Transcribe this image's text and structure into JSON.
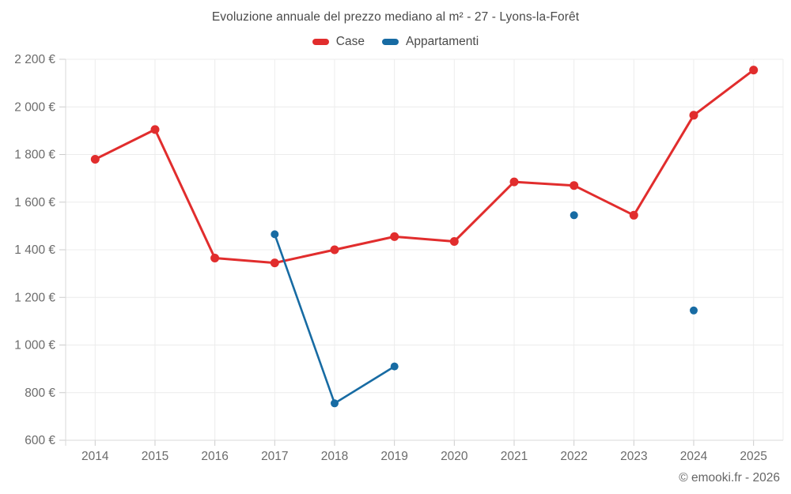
{
  "title": "Evoluzione annuale del prezzo mediano al m² - 27 - Lyons-la-Forêt",
  "legend": {
    "items": [
      {
        "label": "Case",
        "color": "#e12d2d"
      },
      {
        "label": "Appartamenti",
        "color": "#176ba3"
      }
    ]
  },
  "footer": {
    "credit": "© emooki.fr - 2026"
  },
  "colors": {
    "case_series": "#e12d2d",
    "appartamenti_series": "#176ba3",
    "gridline": "#ececec",
    "axis_line": "#d9d9d9",
    "tick": "#cccccc",
    "axis_label": "#6b6b6b",
    "title_text": "#4a4a4a"
  },
  "chart_data": {
    "type": "line",
    "title": "Evoluzione annuale del prezzo mediano al m² - 27 - Lyons-la-Forêt",
    "x": [
      "2014",
      "2015",
      "2016",
      "2017",
      "2018",
      "2019",
      "2020",
      "2021",
      "2022",
      "2023",
      "2024",
      "2025"
    ],
    "series": [
      {
        "name": "Case",
        "color": "#e12d2d",
        "values": [
          1780,
          1905,
          1365,
          1345,
          1400,
          1455,
          1435,
          1685,
          1670,
          1545,
          1965,
          2155
        ]
      },
      {
        "name": "Appartamenti",
        "color": "#176ba3",
        "values": [
          null,
          null,
          null,
          1465,
          755,
          910,
          null,
          null,
          1545,
          null,
          1145,
          null
        ]
      }
    ],
    "ylim": [
      600,
      2200
    ],
    "ytick_step": 200,
    "ytick_labels": [
      "600 €",
      "800 €",
      "1 000 €",
      "1 200 €",
      "1 400 €",
      "1 600 €",
      "1 800 €",
      "2 000 €",
      "2 200 €"
    ],
    "ylabel_unit": "€",
    "grid": true,
    "legend_position": "top"
  }
}
